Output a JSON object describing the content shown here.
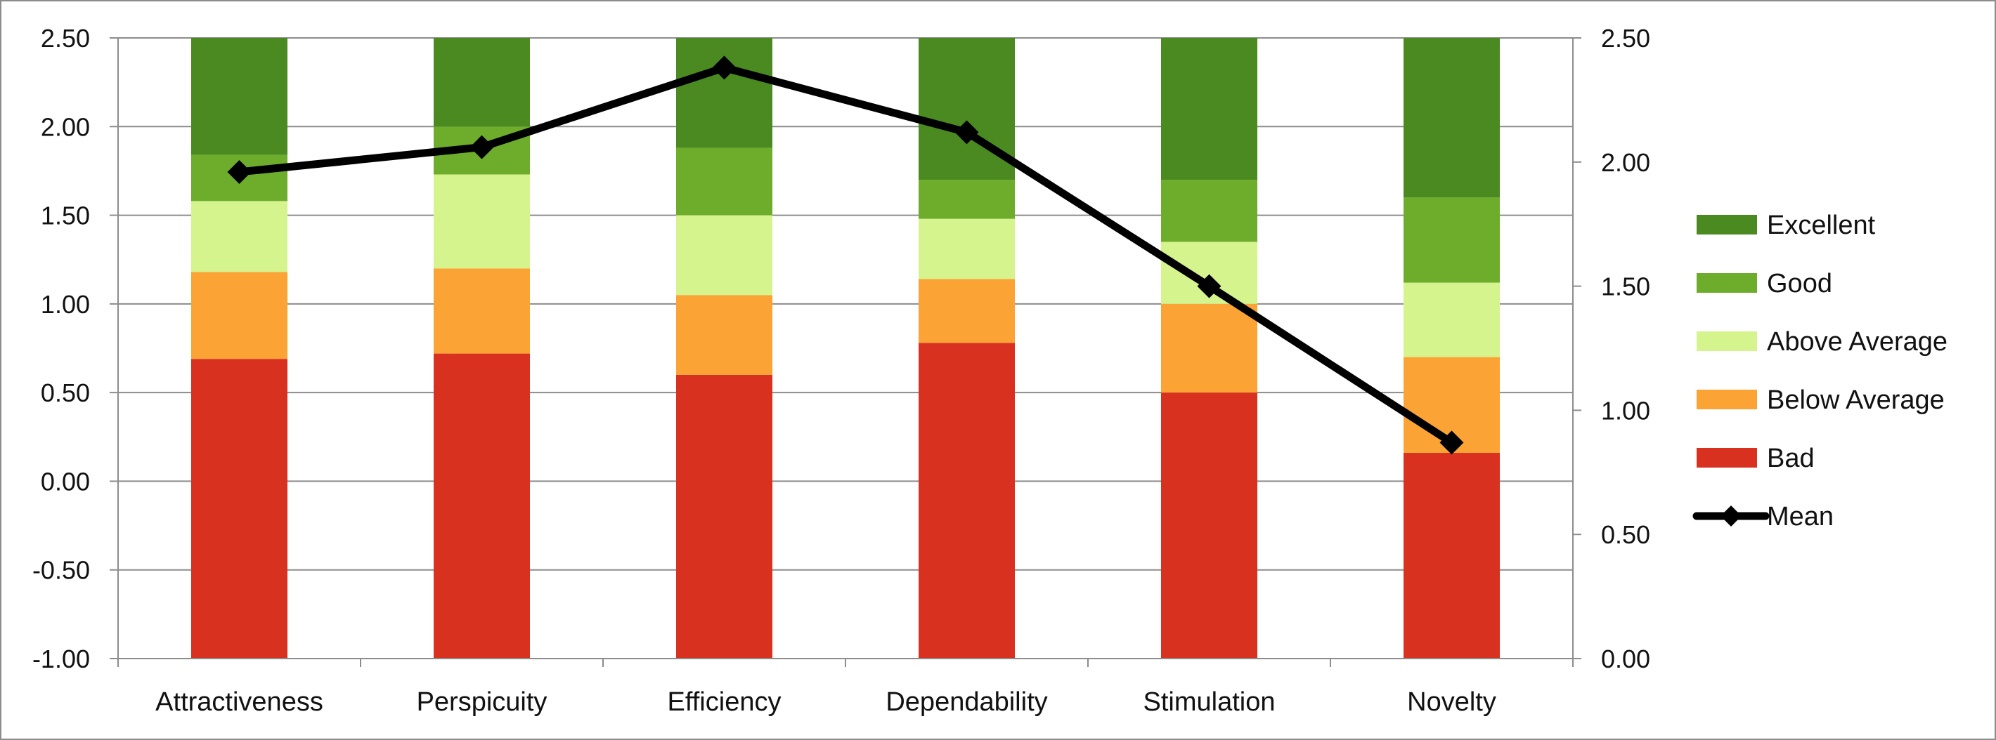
{
  "chart_data": {
    "type": "bar",
    "stacked": true,
    "baseline": -1.0,
    "categories": [
      "Attractiveness",
      "Perspicuity",
      "Efficiency",
      "Dependability",
      "Stimulation",
      "Novelty"
    ],
    "series": [
      {
        "name": "Bad",
        "color": "#d93120",
        "values": [
          1.69,
          1.72,
          1.6,
          1.78,
          1.5,
          1.16
        ]
      },
      {
        "name": "Below Average",
        "color": "#fca336",
        "values": [
          0.49,
          0.48,
          0.45,
          0.36,
          0.5,
          0.54
        ]
      },
      {
        "name": "Above Average",
        "color": "#d5f48e",
        "values": [
          0.4,
          0.53,
          0.45,
          0.34,
          0.35,
          0.42
        ]
      },
      {
        "name": "Good",
        "color": "#6eac2c",
        "values": [
          0.26,
          0.27,
          0.38,
          0.22,
          0.35,
          0.48
        ]
      },
      {
        "name": "Excellent",
        "color": "#4a8a21",
        "values": [
          0.66,
          0.5,
          0.62,
          0.8,
          0.8,
          0.9
        ]
      }
    ],
    "line_series": {
      "name": "Mean",
      "color": "#000000",
      "axis": "right",
      "values": [
        1.96,
        2.06,
        2.38,
        2.12,
        1.5,
        0.87
      ]
    },
    "left_axis": {
      "ylim": [
        -1.0,
        2.5
      ],
      "ticks": [
        "2.50",
        "2.00",
        "1.50",
        "1.00",
        "0.50",
        "0.00",
        "-0.50",
        "-1.00"
      ]
    },
    "right_axis": {
      "ylim": [
        0.0,
        2.5
      ],
      "ticks": [
        "2.50",
        "2.00",
        "1.50",
        "1.00",
        "0.50",
        "0.00"
      ]
    },
    "legend_order": [
      "Excellent",
      "Good",
      "Above Average",
      "Below Average",
      "Bad",
      "Mean"
    ],
    "legend_position": "right",
    "grid": true,
    "colors": {
      "grid": "#8c8c8c",
      "axis": "#8c8c8c",
      "text": "#111111"
    }
  }
}
